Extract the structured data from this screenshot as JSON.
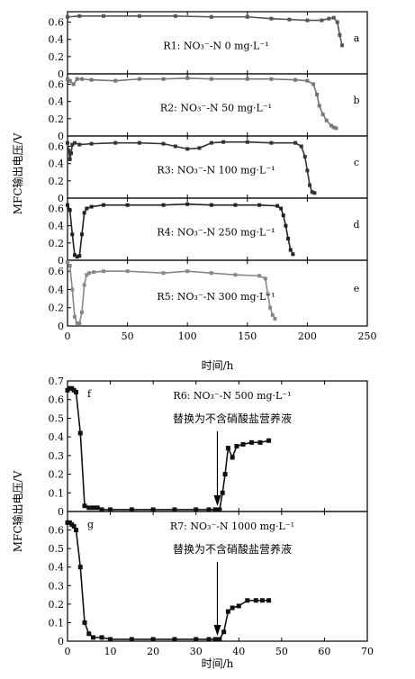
{
  "chart_data": [
    {
      "type": "line",
      "xlabel": "时间/h",
      "ylabel": "MFC输出电压/V",
      "xlim": [
        0,
        250
      ],
      "xticks": [
        0,
        50,
        100,
        150,
        200,
        250
      ],
      "yticks": [
        0,
        0.2,
        0.4,
        0.6
      ],
      "panels": [
        {
          "tag": "a",
          "label": "R1: NO₃⁻-N 0 mg·L⁻¹",
          "color": "#555555",
          "ylim": [
            0,
            0.72
          ],
          "x": [
            0,
            10,
            30,
            60,
            90,
            120,
            150,
            170,
            185,
            200,
            212,
            218,
            222,
            225,
            227,
            229
          ],
          "y": [
            0.66,
            0.67,
            0.67,
            0.67,
            0.67,
            0.66,
            0.66,
            0.64,
            0.63,
            0.62,
            0.62,
            0.64,
            0.65,
            0.6,
            0.45,
            0.33
          ]
        },
        {
          "tag": "b",
          "label": "R2: NO₃⁻-N 50 mg·L⁻¹",
          "color": "#777777",
          "ylim": [
            0,
            0.72
          ],
          "x": [
            0,
            2,
            5,
            8,
            12,
            20,
            40,
            60,
            80,
            100,
            120,
            150,
            170,
            190,
            200,
            205,
            208,
            210,
            213,
            216,
            220,
            222,
            224
          ],
          "y": [
            0.66,
            0.64,
            0.6,
            0.66,
            0.66,
            0.65,
            0.64,
            0.66,
            0.66,
            0.67,
            0.66,
            0.66,
            0.66,
            0.65,
            0.64,
            0.6,
            0.48,
            0.35,
            0.25,
            0.18,
            0.12,
            0.1,
            0.09
          ]
        },
        {
          "tag": "c",
          "label": "R3: NO₃⁻-N 100 mg·L⁻¹",
          "color": "#333333",
          "ylim": [
            0,
            0.72
          ],
          "x": [
            0,
            1,
            2,
            3,
            4,
            6,
            10,
            20,
            40,
            60,
            80,
            90,
            100,
            110,
            120,
            130,
            150,
            170,
            190,
            195,
            198,
            200,
            202,
            204,
            206
          ],
          "y": [
            0.64,
            0.55,
            0.45,
            0.52,
            0.62,
            0.64,
            0.62,
            0.63,
            0.64,
            0.64,
            0.63,
            0.6,
            0.57,
            0.58,
            0.64,
            0.65,
            0.65,
            0.64,
            0.64,
            0.6,
            0.48,
            0.32,
            0.15,
            0.07,
            0.06
          ]
        },
        {
          "tag": "d",
          "label": "R4: NO₃⁻-N 250 mg·L⁻¹",
          "color": "#222222",
          "ylim": [
            0,
            0.72
          ],
          "x": [
            0,
            2,
            4,
            6,
            8,
            10,
            12,
            14,
            16,
            20,
            30,
            50,
            80,
            100,
            120,
            140,
            160,
            175,
            178,
            180,
            182,
            184,
            186,
            188
          ],
          "y": [
            0.64,
            0.58,
            0.3,
            0.06,
            0.04,
            0.05,
            0.3,
            0.55,
            0.6,
            0.62,
            0.64,
            0.64,
            0.64,
            0.65,
            0.64,
            0.64,
            0.64,
            0.63,
            0.6,
            0.52,
            0.4,
            0.25,
            0.12,
            0.07
          ]
        },
        {
          "tag": "e",
          "label": "R5: NO₃⁻-N 300 mg·L⁻¹",
          "color": "#888888",
          "ylim": [
            0,
            0.72
          ],
          "x": [
            0,
            2,
            4,
            6,
            8,
            10,
            12,
            14,
            16,
            18,
            22,
            30,
            50,
            80,
            100,
            120,
            140,
            160,
            165,
            167,
            169,
            171,
            173
          ],
          "y": [
            0.7,
            0.66,
            0.4,
            0.1,
            0.03,
            0.03,
            0.15,
            0.45,
            0.56,
            0.58,
            0.59,
            0.6,
            0.6,
            0.58,
            0.6,
            0.58,
            0.56,
            0.55,
            0.52,
            0.35,
            0.2,
            0.12,
            0.08
          ]
        }
      ]
    },
    {
      "type": "line",
      "xlabel": "时间/h",
      "ylabel": "MFC输出电压/V",
      "xlim": [
        0,
        70
      ],
      "xticks": [
        0,
        10,
        20,
        30,
        40,
        50,
        60,
        70
      ],
      "panels": [
        {
          "tag": "f",
          "label": "R6: NO₃⁻-N 500 mg·L⁻¹",
          "annotation": "替换为不含硝酸盐营养液",
          "annotation_x": 35,
          "color": "#111111",
          "ylim": [
            0,
            0.7
          ],
          "yticks": [
            0,
            0.1,
            0.2,
            0.3,
            0.4,
            0.5,
            0.6,
            0.7
          ],
          "ytick_labels": [
            "0",
            "0.1",
            "0.2",
            "0.3",
            "0.4",
            "0.5",
            "0.6",
            "0.7"
          ],
          "x": [
            0,
            0.5,
            1,
            1.5,
            2,
            3,
            4,
            5,
            6,
            7,
            8,
            10,
            15,
            20,
            25,
            30,
            33,
            34.5,
            35.5,
            36.2,
            36.8,
            37.5,
            38.5,
            39.5,
            41,
            43,
            45,
            47
          ],
          "y": [
            0.65,
            0.66,
            0.66,
            0.65,
            0.64,
            0.42,
            0.03,
            0.02,
            0.02,
            0.02,
            0.01,
            0.01,
            0.01,
            0.01,
            0.01,
            0.01,
            0.01,
            0.01,
            0.01,
            0.1,
            0.2,
            0.34,
            0.29,
            0.35,
            0.36,
            0.37,
            0.37,
            0.38
          ]
        },
        {
          "tag": "g",
          "label": "R7: NO₃⁻-N 1000 mg·L⁻¹",
          "annotation": "替换为不含硝酸盐营养液",
          "annotation_x": 35,
          "color": "#111111",
          "ylim": [
            0,
            0.7
          ],
          "yticks": [
            0,
            0.1,
            0.2,
            0.3,
            0.4,
            0.5,
            0.6
          ],
          "ytick_labels": [
            "0",
            "0.1",
            "0.2",
            "0.3",
            "0.4",
            "0.5",
            "0.6"
          ],
          "x": [
            0,
            0.5,
            1,
            1.5,
            2,
            3,
            4,
            5,
            6,
            8,
            10,
            15,
            20,
            25,
            30,
            33,
            34.5,
            35.5,
            36.5,
            37.5,
            38.5,
            40,
            42,
            44,
            45.5,
            47
          ],
          "y": [
            0.64,
            0.64,
            0.63,
            0.62,
            0.6,
            0.4,
            0.1,
            0.04,
            0.02,
            0.02,
            0.01,
            0.01,
            0.01,
            0.01,
            0.01,
            0.01,
            0.01,
            0.01,
            0.05,
            0.16,
            0.18,
            0.19,
            0.22,
            0.22,
            0.22,
            0.22
          ]
        }
      ]
    }
  ]
}
